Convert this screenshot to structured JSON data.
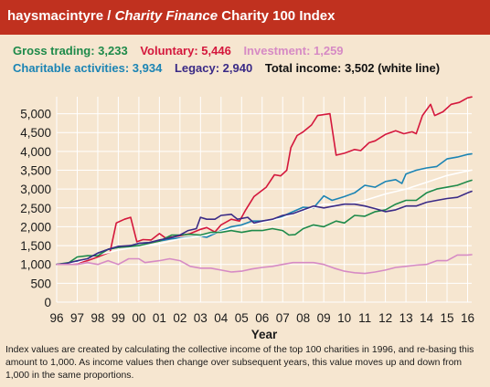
{
  "header": {
    "brand": "haysmacintyre",
    "separator": " / ",
    "publication": "Charity Finance",
    "title_rest": " Charity 100 Index"
  },
  "legend_items": [
    {
      "label": "Gross trading: 3,233",
      "color": "#1e8a4a"
    },
    {
      "label": "Voluntary: 5,446",
      "color": "#d4173c"
    },
    {
      "label": "Investment: 1,259",
      "color": "#d68ac4"
    },
    {
      "label": "Charitable activities: 3,934",
      "color": "#1b84b4"
    },
    {
      "label": "Legacy: 2,940",
      "color": "#3a2a86"
    },
    {
      "label": "Total income: 3,502 (white line)",
      "color": "#111111"
    }
  ],
  "note": "Index values are created by calculating the collective income of the top 100 charities in 1996, and re-basing this amount to 1,000. As income values then change over subsequent years, this value moves up and down from 1,000 in the same proportions.",
  "chart_data": {
    "type": "line",
    "xlabel": "Year",
    "ylabel": "",
    "x_ticks": [
      "96",
      "97",
      "98",
      "99",
      "00",
      "01",
      "02",
      "03",
      "04",
      "05",
      "06",
      "07",
      "08",
      "09",
      "10",
      "11",
      "12",
      "13",
      "14",
      "15",
      "16"
    ],
    "x_range": [
      1996,
      2016.2
    ],
    "y_ticks": [
      0,
      500,
      1000,
      1500,
      2000,
      2500,
      3000,
      3500,
      4000,
      4500,
      5000
    ],
    "y_tick_labels": [
      "0",
      "500",
      "1,000",
      "1,500",
      "2,000",
      "2,500",
      "3,000",
      "3,500",
      "4,000",
      "4,500",
      "5,000"
    ],
    "ylim": [
      0,
      5450
    ],
    "grid": true,
    "plot_background": "#f6e6d0",
    "grid_color": "#ffffff",
    "series": [
      {
        "name": "Voluntary",
        "color": "#d4173c",
        "points": [
          [
            1996,
            1000
          ],
          [
            1996.5,
            1020
          ],
          [
            1997,
            1040
          ],
          [
            1997.5,
            1100
          ],
          [
            1998,
            1200
          ],
          [
            1998.6,
            1330
          ],
          [
            1998.9,
            2100
          ],
          [
            1999.3,
            2200
          ],
          [
            1999.6,
            2250
          ],
          [
            1999.9,
            1600
          ],
          [
            2000.2,
            1660
          ],
          [
            2000.6,
            1650
          ],
          [
            2001,
            1820
          ],
          [
            2001.3,
            1700
          ],
          [
            2002,
            1760
          ],
          [
            2002.5,
            1820
          ],
          [
            2003,
            1930
          ],
          [
            2003.3,
            1980
          ],
          [
            2003.7,
            1860
          ],
          [
            2004,
            2050
          ],
          [
            2004.5,
            2200
          ],
          [
            2004.9,
            2150
          ],
          [
            2005.2,
            2450
          ],
          [
            2005.6,
            2800
          ],
          [
            2006.2,
            3050
          ],
          [
            2006.6,
            3380
          ],
          [
            2006.9,
            3350
          ],
          [
            2007.2,
            3500
          ],
          [
            2007.4,
            4100
          ],
          [
            2007.7,
            4420
          ],
          [
            2008,
            4520
          ],
          [
            2008.4,
            4700
          ],
          [
            2008.7,
            4950
          ],
          [
            2009.3,
            5000
          ],
          [
            2009.6,
            3900
          ],
          [
            2010,
            3950
          ],
          [
            2010.5,
            4050
          ],
          [
            2010.8,
            4020
          ],
          [
            2011.2,
            4230
          ],
          [
            2011.5,
            4280
          ],
          [
            2012,
            4450
          ],
          [
            2012.5,
            4550
          ],
          [
            2012.9,
            4470
          ],
          [
            2013.3,
            4520
          ],
          [
            2013.5,
            4470
          ],
          [
            2013.8,
            4950
          ],
          [
            2014.2,
            5250
          ],
          [
            2014.4,
            4950
          ],
          [
            2014.8,
            5050
          ],
          [
            2015.2,
            5250
          ],
          [
            2015.6,
            5300
          ],
          [
            2016,
            5420
          ],
          [
            2016.2,
            5446
          ]
        ]
      },
      {
        "name": "Charitable activities",
        "color": "#1b84b4",
        "points": [
          [
            1996,
            1000
          ],
          [
            1996.5,
            1030
          ],
          [
            1997,
            1080
          ],
          [
            1997.5,
            1150
          ],
          [
            1998,
            1300
          ],
          [
            1998.5,
            1400
          ],
          [
            1999,
            1450
          ],
          [
            1999.6,
            1500
          ],
          [
            2000,
            1560
          ],
          [
            2000.5,
            1580
          ],
          [
            2001,
            1620
          ],
          [
            2001.6,
            1680
          ],
          [
            2002,
            1700
          ],
          [
            2002.4,
            1720
          ],
          [
            2003,
            1750
          ],
          [
            2003.3,
            1720
          ],
          [
            2004,
            1900
          ],
          [
            2004.5,
            2000
          ],
          [
            2005,
            2050
          ],
          [
            2005.5,
            2150
          ],
          [
            2006,
            2150
          ],
          [
            2006.6,
            2200
          ],
          [
            2007,
            2280
          ],
          [
            2007.5,
            2400
          ],
          [
            2008,
            2520
          ],
          [
            2008.5,
            2500
          ],
          [
            2009,
            2820
          ],
          [
            2009.4,
            2700
          ],
          [
            2009.7,
            2750
          ],
          [
            2010,
            2800
          ],
          [
            2010.5,
            2900
          ],
          [
            2011,
            3100
          ],
          [
            2011.5,
            3050
          ],
          [
            2012,
            3200
          ],
          [
            2012.5,
            3250
          ],
          [
            2012.8,
            3150
          ],
          [
            2013,
            3400
          ],
          [
            2013.5,
            3500
          ],
          [
            2014,
            3560
          ],
          [
            2014.5,
            3600
          ],
          [
            2015,
            3800
          ],
          [
            2015.5,
            3850
          ],
          [
            2016,
            3920
          ],
          [
            2016.2,
            3934
          ]
        ]
      },
      {
        "name": "Total income",
        "color": "#ffffff",
        "points": [
          [
            1996,
            1000
          ],
          [
            1997,
            1050
          ],
          [
            1998,
            1250
          ],
          [
            1999,
            1380
          ],
          [
            2000,
            1480
          ],
          [
            2001,
            1550
          ],
          [
            2002,
            1680
          ],
          [
            2003,
            1750
          ],
          [
            2004,
            1880
          ],
          [
            2005,
            2000
          ],
          [
            2006,
            2120
          ],
          [
            2007,
            2230
          ],
          [
            2008,
            2430
          ],
          [
            2009,
            2600
          ],
          [
            2010,
            2580
          ],
          [
            2011,
            2700
          ],
          [
            2012,
            2870
          ],
          [
            2013,
            3000
          ],
          [
            2014,
            3180
          ],
          [
            2015,
            3360
          ],
          [
            2016,
            3480
          ],
          [
            2016.2,
            3502
          ]
        ]
      },
      {
        "name": "Gross trading",
        "color": "#1e8a4a",
        "points": [
          [
            1996,
            1000
          ],
          [
            1996.6,
            1050
          ],
          [
            1997,
            1200
          ],
          [
            1997.5,
            1230
          ],
          [
            1998,
            1230
          ],
          [
            1998.5,
            1400
          ],
          [
            1999,
            1450
          ],
          [
            1999.5,
            1470
          ],
          [
            2000,
            1500
          ],
          [
            2000.5,
            1560
          ],
          [
            2001,
            1620
          ],
          [
            2001.6,
            1780
          ],
          [
            2002,
            1780
          ],
          [
            2002.5,
            1800
          ],
          [
            2003,
            1780
          ],
          [
            2003.5,
            1850
          ],
          [
            2004,
            1850
          ],
          [
            2004.5,
            1900
          ],
          [
            2005,
            1850
          ],
          [
            2005.5,
            1900
          ],
          [
            2006,
            1900
          ],
          [
            2006.5,
            1950
          ],
          [
            2007,
            1900
          ],
          [
            2007.3,
            1780
          ],
          [
            2007.6,
            1790
          ],
          [
            2008,
            1950
          ],
          [
            2008.5,
            2050
          ],
          [
            2009,
            2000
          ],
          [
            2009.6,
            2150
          ],
          [
            2010,
            2100
          ],
          [
            2010.5,
            2300
          ],
          [
            2011,
            2280
          ],
          [
            2011.5,
            2400
          ],
          [
            2012,
            2450
          ],
          [
            2012.5,
            2600
          ],
          [
            2013,
            2700
          ],
          [
            2013.5,
            2700
          ],
          [
            2014,
            2900
          ],
          [
            2014.5,
            3000
          ],
          [
            2015,
            3050
          ],
          [
            2015.5,
            3100
          ],
          [
            2016,
            3200
          ],
          [
            2016.2,
            3233
          ]
        ]
      },
      {
        "name": "Legacy",
        "color": "#3a2a86",
        "points": [
          [
            1996,
            1000
          ],
          [
            1996.5,
            1030
          ],
          [
            1997,
            1100
          ],
          [
            1997.5,
            1150
          ],
          [
            1998,
            1300
          ],
          [
            1998.5,
            1400
          ],
          [
            1999,
            1480
          ],
          [
            1999.6,
            1500
          ],
          [
            2000,
            1560
          ],
          [
            2000.5,
            1580
          ],
          [
            2001,
            1650
          ],
          [
            2001.5,
            1700
          ],
          [
            2002,
            1780
          ],
          [
            2002.4,
            1900
          ],
          [
            2002.8,
            1950
          ],
          [
            2003,
            2250
          ],
          [
            2003.3,
            2200
          ],
          [
            2003.7,
            2200
          ],
          [
            2004,
            2300
          ],
          [
            2004.5,
            2330
          ],
          [
            2004.8,
            2200
          ],
          [
            2005.3,
            2250
          ],
          [
            2005.6,
            2100
          ],
          [
            2006,
            2150
          ],
          [
            2006.5,
            2200
          ],
          [
            2007,
            2300
          ],
          [
            2007.5,
            2350
          ],
          [
            2008,
            2450
          ],
          [
            2008.5,
            2550
          ],
          [
            2009,
            2500
          ],
          [
            2009.5,
            2550
          ],
          [
            2010,
            2600
          ],
          [
            2010.5,
            2600
          ],
          [
            2011,
            2550
          ],
          [
            2011.5,
            2480
          ],
          [
            2012,
            2400
          ],
          [
            2012.5,
            2450
          ],
          [
            2013,
            2550
          ],
          [
            2013.5,
            2550
          ],
          [
            2014,
            2650
          ],
          [
            2014.5,
            2700
          ],
          [
            2015,
            2750
          ],
          [
            2015.5,
            2780
          ],
          [
            2016,
            2900
          ],
          [
            2016.2,
            2940
          ]
        ]
      },
      {
        "name": "Investment",
        "color": "#d68ac4",
        "points": [
          [
            1996,
            1000
          ],
          [
            1997,
            1000
          ],
          [
            1997.5,
            1050
          ],
          [
            1998,
            1000
          ],
          [
            1998.5,
            1100
          ],
          [
            1999,
            1000
          ],
          [
            1999.5,
            1150
          ],
          [
            2000,
            1150
          ],
          [
            2000.3,
            1050
          ],
          [
            2001,
            1100
          ],
          [
            2001.5,
            1150
          ],
          [
            2002,
            1100
          ],
          [
            2002.5,
            950
          ],
          [
            2003,
            900
          ],
          [
            2003.5,
            900
          ],
          [
            2004,
            850
          ],
          [
            2004.5,
            800
          ],
          [
            2005,
            820
          ],
          [
            2005.5,
            880
          ],
          [
            2006,
            920
          ],
          [
            2006.5,
            950
          ],
          [
            2007,
            1000
          ],
          [
            2007.5,
            1050
          ],
          [
            2008,
            1050
          ],
          [
            2008.5,
            1050
          ],
          [
            2009,
            1000
          ],
          [
            2009.5,
            900
          ],
          [
            2010,
            820
          ],
          [
            2010.5,
            780
          ],
          [
            2011,
            760
          ],
          [
            2011.5,
            800
          ],
          [
            2012,
            850
          ],
          [
            2012.5,
            920
          ],
          [
            2013,
            950
          ],
          [
            2013.5,
            980
          ],
          [
            2014,
            1000
          ],
          [
            2014.5,
            1100
          ],
          [
            2015,
            1100
          ],
          [
            2015.5,
            1250
          ],
          [
            2016,
            1250
          ],
          [
            2016.2,
            1259
          ]
        ]
      }
    ]
  }
}
